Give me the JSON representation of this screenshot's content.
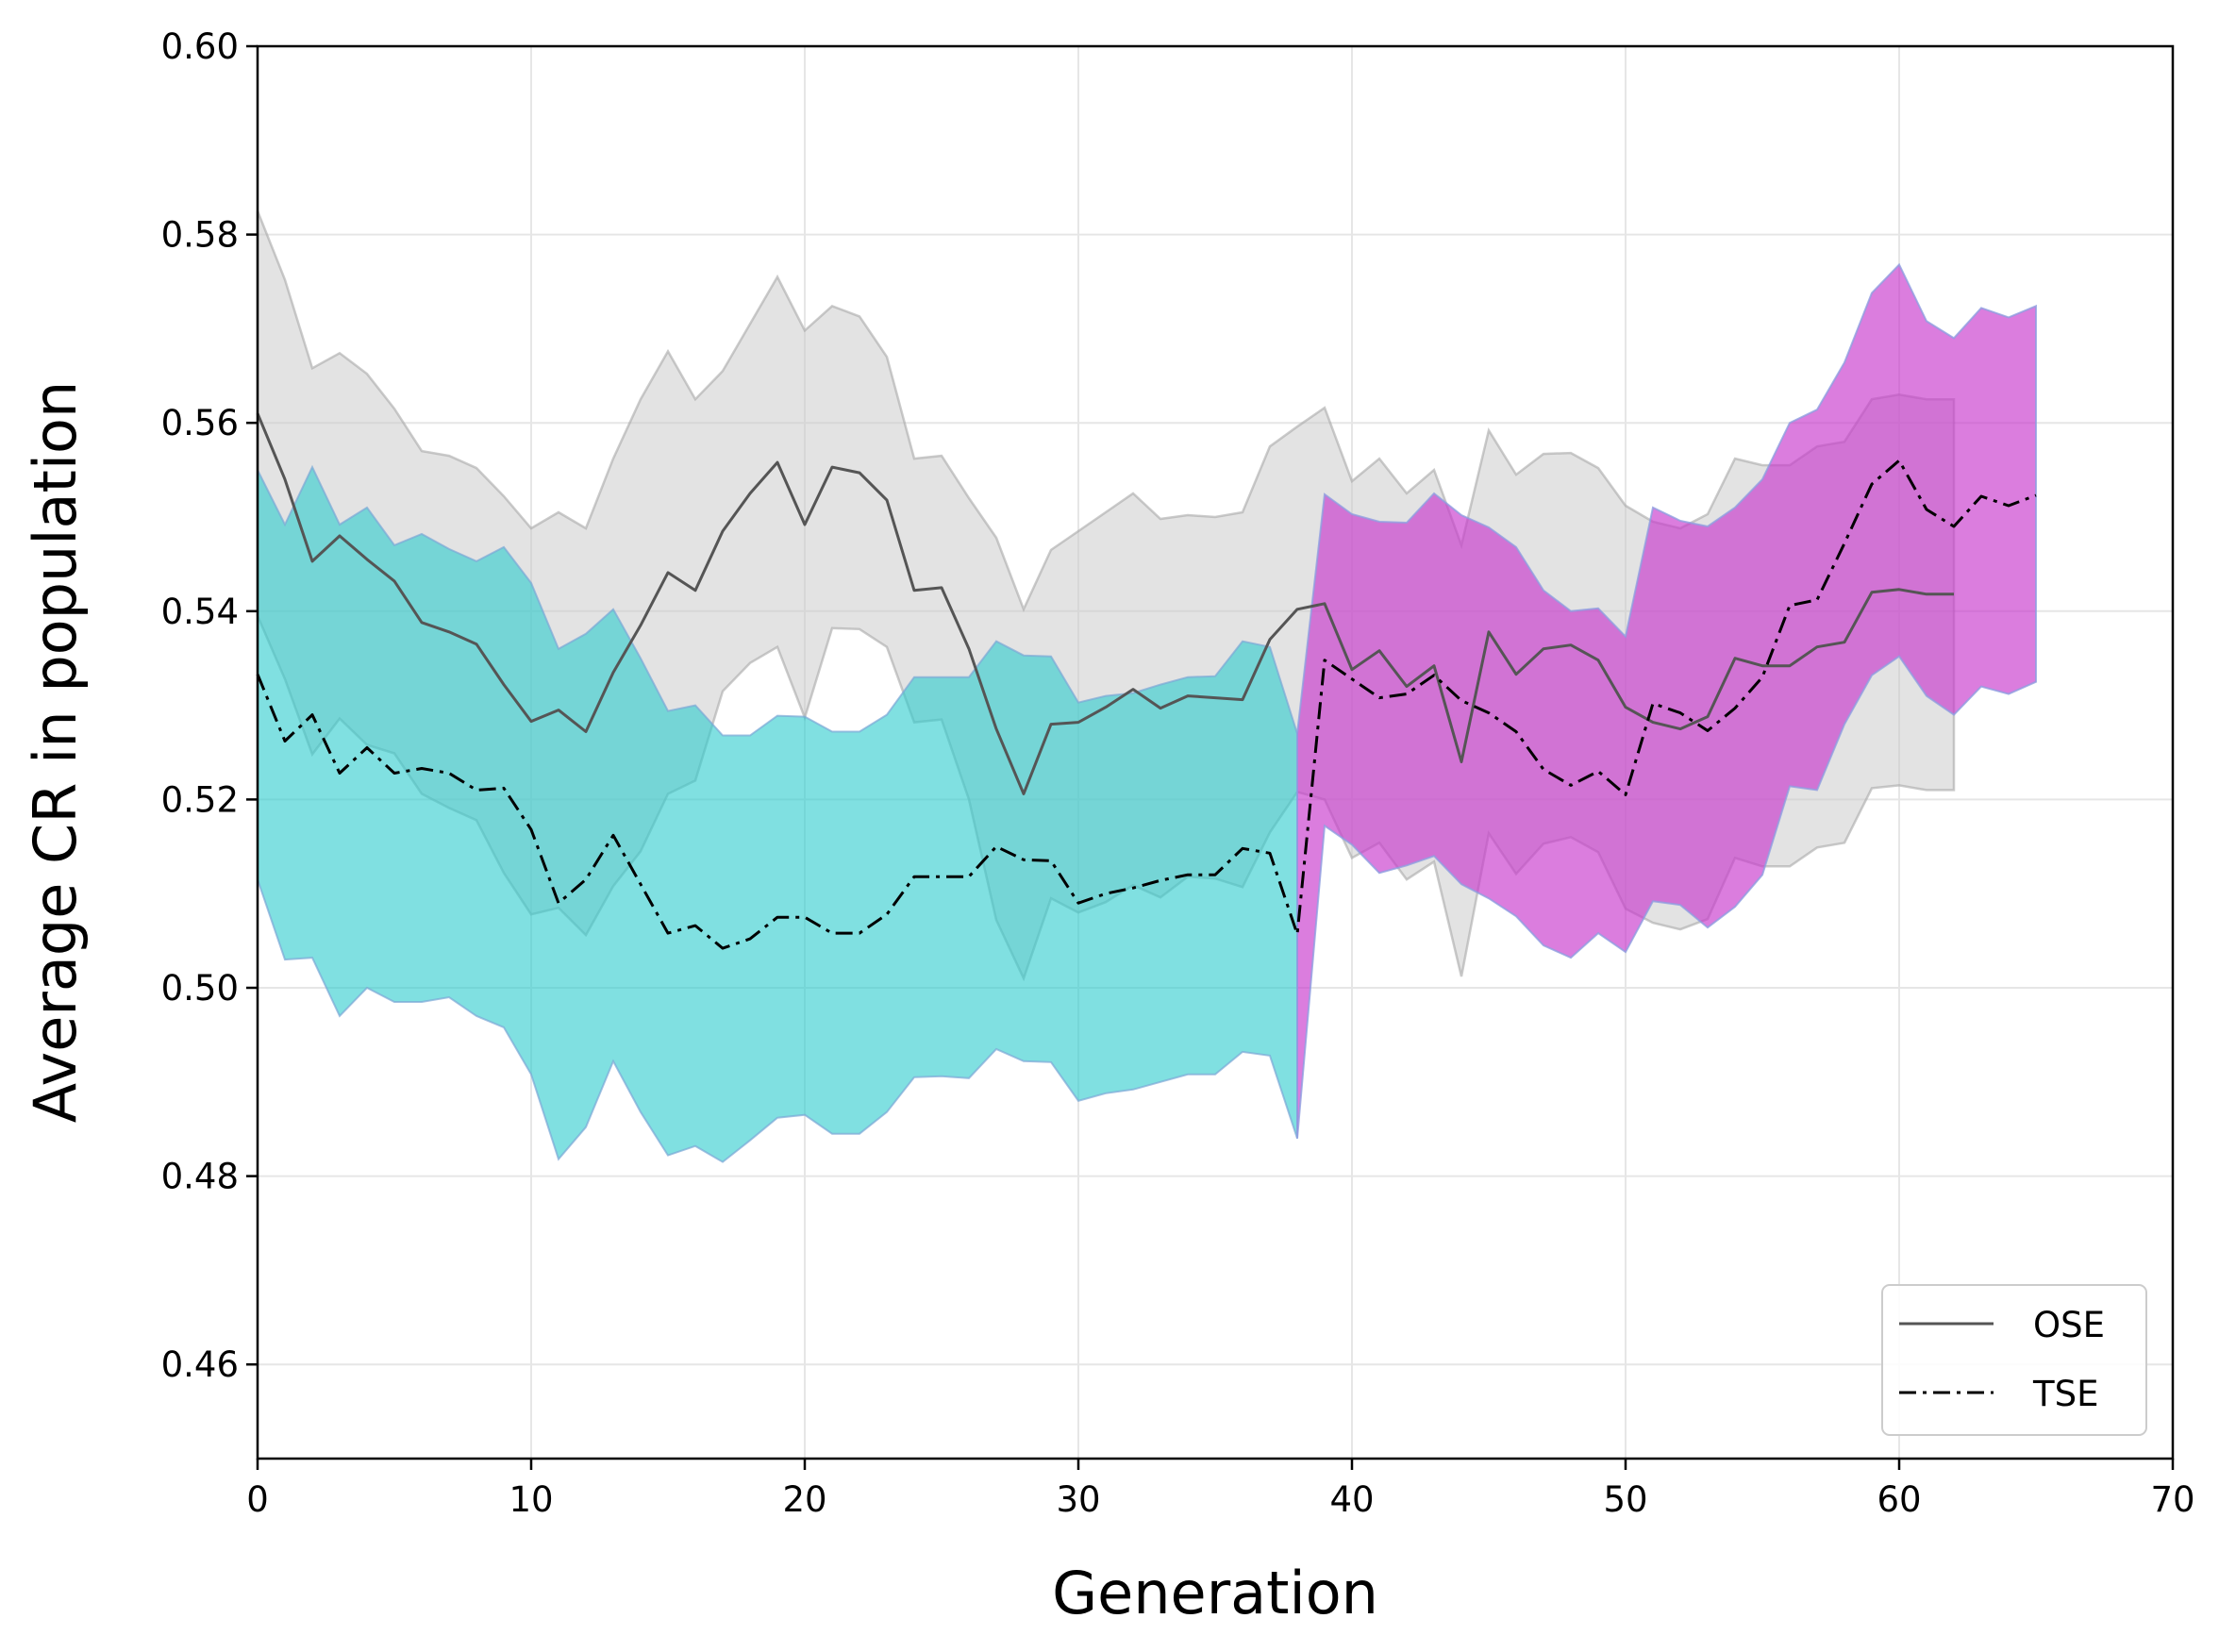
{
  "chart_data": {
    "type": "line",
    "title": "",
    "xlabel": "Generation",
    "ylabel": "Average CR in population",
    "xlim": [
      0,
      70
    ],
    "ylim": [
      0.45,
      0.6
    ],
    "xticks": [
      0,
      10,
      20,
      30,
      40,
      50,
      60,
      70
    ],
    "xtick_labels": [
      "0",
      "10",
      "20",
      "30",
      "40",
      "50",
      "60",
      "70"
    ],
    "yticks": [
      0.46,
      0.48,
      0.5,
      0.52,
      0.54,
      0.56,
      0.58,
      0.6
    ],
    "ytick_labels": [
      "0.46",
      "0.48",
      "0.50",
      "0.52",
      "0.54",
      "0.56",
      "0.58",
      "0.60"
    ],
    "grid": true,
    "legend_position": "bottom-right",
    "colors": {
      "ose_line": "#555555",
      "tse_line": "#000000",
      "ose_band": "#c8c8c8",
      "tse_band_phase1": "#2ccbcd",
      "tse_band_phase2": "#c837cc"
    },
    "series": [
      {
        "name": "OSE",
        "style": "solid",
        "x": [
          0,
          1,
          2,
          3,
          4,
          5,
          6,
          7,
          8,
          9,
          10,
          11,
          12,
          13,
          14,
          15,
          16,
          17,
          18,
          19,
          20,
          21,
          22,
          23,
          24,
          25,
          26,
          27,
          28,
          29,
          30,
          31,
          32,
          33,
          34,
          35,
          36,
          37,
          38,
          39,
          40,
          41,
          42,
          43,
          44,
          45,
          46,
          47,
          48,
          49,
          50,
          51,
          52,
          53,
          54,
          55,
          56,
          57,
          58,
          59,
          60,
          61,
          62
        ],
        "mean": [
          0.561,
          0.554,
          0.5453,
          0.548,
          0.5455,
          0.5432,
          0.5388,
          0.5378,
          0.5365,
          0.5322,
          0.5283,
          0.5295,
          0.5272,
          0.5335,
          0.5385,
          0.5441,
          0.5422,
          0.5485,
          0.5525,
          0.5558,
          0.5492,
          0.5553,
          0.5547,
          0.5518,
          0.5422,
          0.5425,
          0.536,
          0.5275,
          0.5206,
          0.528,
          0.5282,
          0.5298,
          0.5317,
          0.5297,
          0.531,
          0.5308,
          0.5306,
          0.537,
          0.5402,
          0.5408,
          0.5338,
          0.5358,
          0.532,
          0.5342,
          0.524,
          0.5378,
          0.5333,
          0.536,
          0.5364,
          0.5348,
          0.5298,
          0.5282,
          0.5275,
          0.5288,
          0.535,
          0.5342,
          0.5342,
          0.5362,
          0.5367,
          0.542,
          0.5423,
          0.5418,
          0.5418
        ],
        "upper": [
          0.5825,
          0.5752,
          0.5658,
          0.5674,
          0.5652,
          0.5615,
          0.557,
          0.5565,
          0.5552,
          0.5522,
          0.5488,
          0.5505,
          0.5488,
          0.5562,
          0.5625,
          0.5676,
          0.5625,
          0.5655,
          0.5705,
          0.5755,
          0.5698,
          0.5724,
          0.5713,
          0.567,
          0.5562,
          0.5565,
          0.552,
          0.5478,
          0.5402,
          0.5465,
          0.5485,
          0.5505,
          0.5525,
          0.5498,
          0.5502,
          0.55,
          0.5505,
          0.5575,
          0.5596,
          0.5616,
          0.5538,
          0.5562,
          0.5525,
          0.555,
          0.547,
          0.5592,
          0.5545,
          0.5567,
          0.5568,
          0.5552,
          0.5512,
          0.5495,
          0.5488,
          0.5503,
          0.5562,
          0.5555,
          0.5555,
          0.5575,
          0.558,
          0.5625,
          0.563,
          0.5625,
          0.5625
        ],
        "lower": [
          0.5395,
          0.5328,
          0.5248,
          0.5286,
          0.5258,
          0.5249,
          0.5206,
          0.5191,
          0.5178,
          0.5122,
          0.5078,
          0.5085,
          0.5056,
          0.5108,
          0.5145,
          0.5206,
          0.522,
          0.5315,
          0.5345,
          0.5362,
          0.5287,
          0.5382,
          0.5381,
          0.5362,
          0.5282,
          0.5285,
          0.52,
          0.5072,
          0.501,
          0.5095,
          0.508,
          0.5091,
          0.5109,
          0.5096,
          0.5118,
          0.5116,
          0.5107,
          0.5165,
          0.5208,
          0.52,
          0.5138,
          0.5154,
          0.5115,
          0.5134,
          0.5012,
          0.5164,
          0.5121,
          0.5153,
          0.516,
          0.5144,
          0.5084,
          0.5069,
          0.5062,
          0.5073,
          0.5138,
          0.5129,
          0.5129,
          0.5149,
          0.5154,
          0.5212,
          0.5215,
          0.521,
          0.521
        ]
      },
      {
        "name": "TSE",
        "style": "dashdot",
        "x": [
          0,
          1,
          2,
          3,
          4,
          5,
          6,
          7,
          8,
          9,
          10,
          11,
          12,
          13,
          14,
          15,
          16,
          17,
          18,
          19,
          20,
          21,
          22,
          23,
          24,
          25,
          26,
          27,
          28,
          29,
          30,
          31,
          32,
          33,
          34,
          35,
          36,
          37,
          38,
          39,
          40,
          41,
          42,
          43,
          44,
          45,
          46,
          47,
          48,
          49,
          50,
          51,
          52,
          53,
          54,
          55,
          56,
          57,
          58,
          59,
          60,
          61,
          62,
          63,
          64,
          65
        ],
        "mean": [
          0.5333,
          0.5262,
          0.529,
          0.5228,
          0.5255,
          0.5228,
          0.5233,
          0.5228,
          0.521,
          0.5212,
          0.5168,
          0.509,
          0.5115,
          0.5162,
          0.511,
          0.5058,
          0.5066,
          0.5042,
          0.5052,
          0.5075,
          0.5075,
          0.5058,
          0.5058,
          0.5078,
          0.5118,
          0.5118,
          0.5118,
          0.515,
          0.5136,
          0.5135,
          0.509,
          0.51,
          0.5106,
          0.5114,
          0.512,
          0.512,
          0.5148,
          0.5143,
          0.5057,
          0.5348,
          0.5328,
          0.5308,
          0.5312,
          0.5332,
          0.5305,
          0.5292,
          0.5272,
          0.5232,
          0.5215,
          0.523,
          0.5205,
          0.5302,
          0.5292,
          0.5273,
          0.5297,
          0.533,
          0.5406,
          0.5412,
          0.5472,
          0.5535,
          0.556,
          0.5508,
          0.549,
          0.5522,
          0.5512,
          0.5523
        ],
        "upper": [
          0.555,
          0.5492,
          0.5553,
          0.5492,
          0.551,
          0.547,
          0.5482,
          0.5466,
          0.5453,
          0.5468,
          0.543,
          0.536,
          0.5376,
          0.5402,
          0.535,
          0.5294,
          0.53,
          0.5268,
          0.5268,
          0.5289,
          0.5288,
          0.5272,
          0.5272,
          0.529,
          0.533,
          0.533,
          0.533,
          0.5368,
          0.5353,
          0.5352,
          0.5303,
          0.531,
          0.5313,
          0.5322,
          0.533,
          0.5331,
          0.5368,
          0.5362,
          0.527,
          0.5524,
          0.5503,
          0.5495,
          0.5494,
          0.5525,
          0.5502,
          0.5489,
          0.5468,
          0.5422,
          0.54,
          0.5403,
          0.5373,
          0.551,
          0.5496,
          0.549,
          0.551,
          0.554,
          0.56,
          0.5614,
          0.5664,
          0.5738,
          0.5768,
          0.5708,
          0.569,
          0.5722,
          0.5712,
          0.5724
        ],
        "lower": [
          0.5115,
          0.503,
          0.5032,
          0.497,
          0.5,
          0.4985,
          0.4985,
          0.499,
          0.497,
          0.4958,
          0.4908,
          0.4818,
          0.4852,
          0.4922,
          0.4868,
          0.4822,
          0.4832,
          0.4815,
          0.4838,
          0.4862,
          0.4865,
          0.4845,
          0.4845,
          0.4868,
          0.4905,
          0.4906,
          0.4904,
          0.4935,
          0.4922,
          0.4921,
          0.488,
          0.4888,
          0.4892,
          0.49,
          0.4908,
          0.4908,
          0.4932,
          0.4928,
          0.484,
          0.5172,
          0.5152,
          0.5122,
          0.513,
          0.514,
          0.511,
          0.5095,
          0.5076,
          0.5045,
          0.5032,
          0.5058,
          0.5038,
          0.5092,
          0.5088,
          0.5064,
          0.5086,
          0.512,
          0.5214,
          0.521,
          0.528,
          0.5332,
          0.5352,
          0.531,
          0.529,
          0.532,
          0.5312,
          0.5325
        ]
      }
    ],
    "band_split_generation": 38,
    "legend": [
      {
        "label": "OSE",
        "style": "solid"
      },
      {
        "label": "TSE",
        "style": "dashdot"
      }
    ]
  }
}
